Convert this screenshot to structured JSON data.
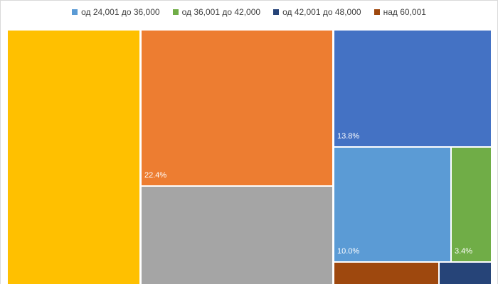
{
  "chart_data": {
    "type": "treemap",
    "legend": [
      {
        "label": "од 24,001 до 36,000",
        "color": "#5B9BD5"
      },
      {
        "label": "од 36,001 до 42,000",
        "color": "#70AD47"
      },
      {
        "label": "од 42,001 до 48,000",
        "color": "#264478"
      },
      {
        "label": "над 60,001",
        "color": "#9E480E"
      }
    ],
    "tiles": [
      {
        "name": "yellow-tile",
        "color": "#FFC000",
        "label": ""
      },
      {
        "name": "orange-tile",
        "color": "#ED7D31",
        "label": "22.4%"
      },
      {
        "name": "gray-tile",
        "color": "#A5A5A5",
        "label": ""
      },
      {
        "name": "dark-blue-tile",
        "color": "#4472C4",
        "label": "13.8%"
      },
      {
        "name": "light-blue-tile",
        "color": "#5B9BD5",
        "label": "10.0%"
      },
      {
        "name": "green-tile",
        "color": "#70AD47",
        "label": "3.4%"
      },
      {
        "name": "brown-tile",
        "color": "#9E480E",
        "label": ""
      },
      {
        "name": "navy-tile",
        "color": "#264478",
        "label": ""
      }
    ]
  }
}
